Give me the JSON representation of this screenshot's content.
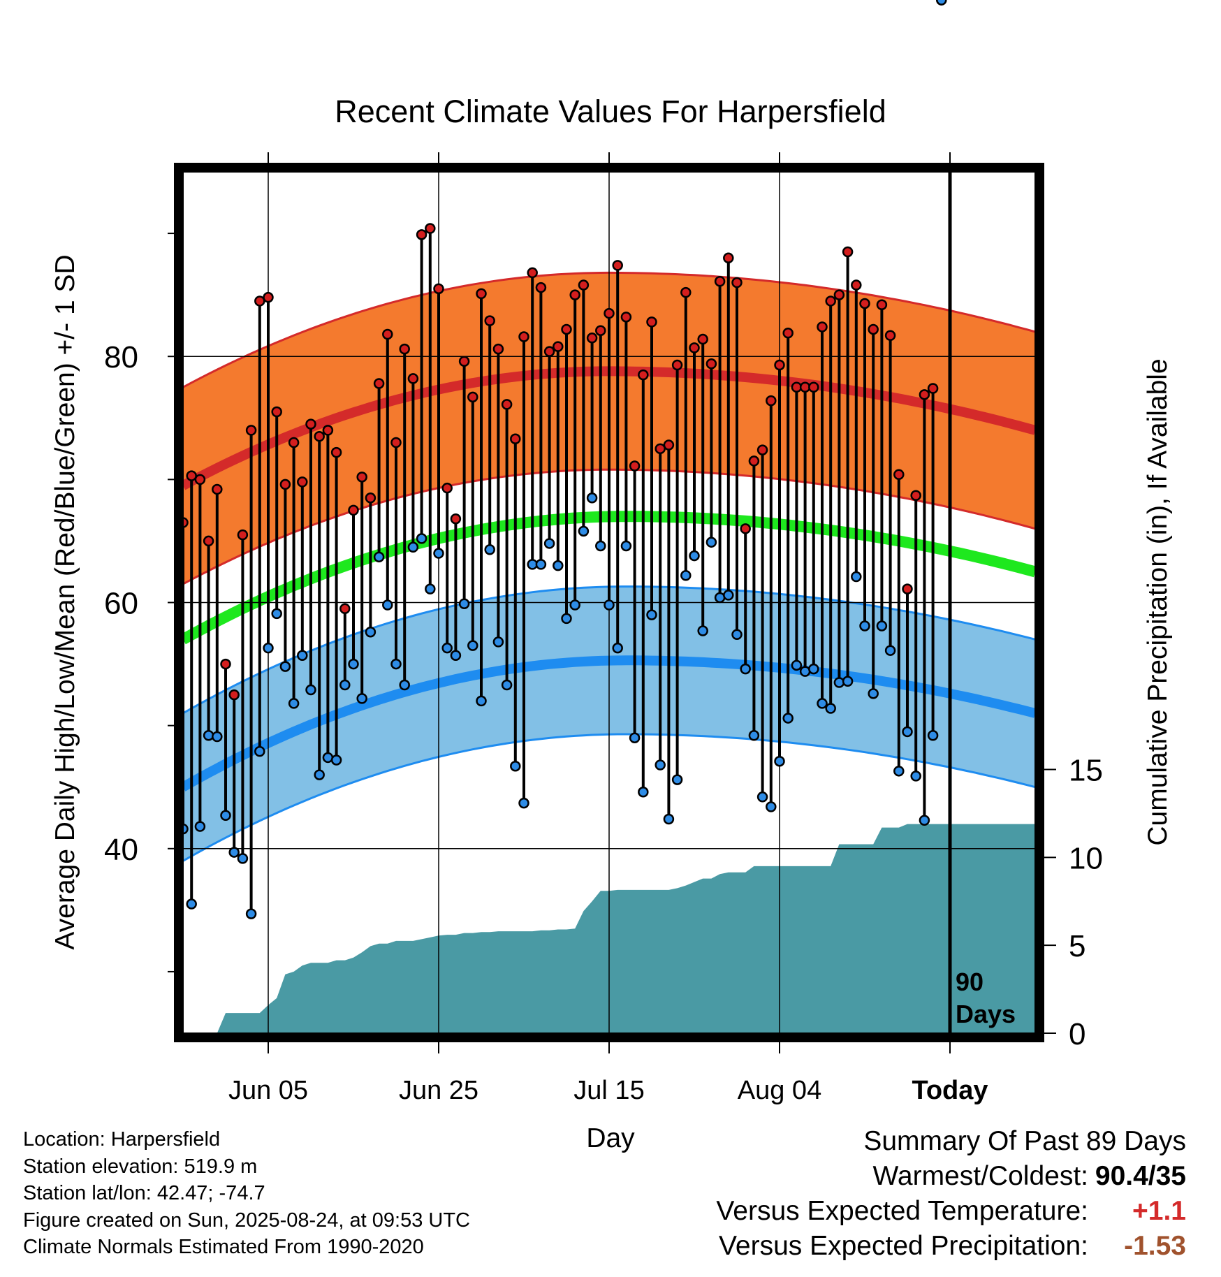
{
  "chart_data": {
    "type": "line",
    "title": "Recent Climate Values For Harpersfield",
    "xlabel": "Day",
    "ylabel": "Average Daily High/Low/Mean (Red/Blue/Green) +/- 1 SD",
    "y2label": "Cumulative Precipitation (in), If Available",
    "x_ticks": [
      "Jun 05",
      "Jun 25",
      "Jul 15",
      "Aug 04",
      "Today"
    ],
    "x_tick_days": [
      10,
      30,
      50,
      70,
      90
    ],
    "x_range_days": [
      0,
      100
    ],
    "y_ticks": [
      40,
      60,
      80
    ],
    "ylim": [
      25,
      95
    ],
    "y2_ticks": [
      0,
      5,
      10,
      15
    ],
    "y2lim": [
      0,
      49
    ],
    "today_marker": "90\nDays",
    "normal_high": {
      "day0": 69.5,
      "peak": 78.8,
      "peak_day": 50,
      "day100": 74
    },
    "normal_low": {
      "day0": 45.0,
      "peak": 55.3,
      "peak_day": 52,
      "day100": 51
    },
    "normal_mean_band": {
      "day0": 57.0,
      "peak": 67.0,
      "peak_day": 52,
      "day100": 62.5
    },
    "high_sd": 8.0,
    "low_sd": 6.0,
    "daily": {
      "days": [
        0,
        1,
        2,
        3,
        4,
        5,
        6,
        7,
        8,
        9,
        10,
        11,
        12,
        13,
        14,
        15,
        16,
        17,
        18,
        19,
        20,
        21,
        22,
        23,
        24,
        25,
        26,
        27,
        28,
        29,
        30,
        31,
        32,
        33,
        34,
        35,
        36,
        37,
        38,
        39,
        40,
        41,
        42,
        43,
        44,
        45,
        46,
        47,
        48,
        49,
        50,
        51,
        52,
        53,
        54,
        55,
        56,
        57,
        58,
        59,
        60,
        61,
        62,
        63,
        64,
        65,
        66,
        67,
        68,
        69,
        70,
        71,
        72,
        73,
        74,
        75,
        76,
        77,
        78,
        79,
        80,
        81,
        82,
        83,
        84,
        85,
        86,
        87,
        88,
        89
      ],
      "highs": [
        66.5,
        70.3,
        70.0,
        65.0,
        69.2,
        55.0,
        52.5,
        65.5,
        74.0,
        84.5,
        84.8,
        75.5,
        69.6,
        73.0,
        69.8,
        74.5,
        73.5,
        74.0,
        72.2,
        59.5,
        67.5,
        70.2,
        68.5,
        77.8,
        81.8,
        73.0,
        80.6,
        78.2,
        89.9,
        90.4,
        85.5,
        69.3,
        66.8,
        79.6,
        76.7,
        85.1,
        82.9,
        80.6,
        76.1,
        73.3,
        81.6,
        86.8,
        85.6,
        80.4,
        80.8,
        82.2,
        85.0,
        85.8,
        81.5,
        82.1,
        83.5,
        87.4,
        83.2,
        71.1,
        78.5,
        82.8,
        72.5,
        72.8,
        79.3,
        85.2,
        80.7,
        81.4,
        79.4,
        86.1,
        88.0,
        86.0,
        66.0,
        71.5,
        72.4,
        76.4,
        79.3,
        81.9,
        77.5,
        77.5,
        77.5,
        82.4,
        84.5,
        85.0,
        88.5,
        85.8,
        84.3,
        82.2,
        84.2,
        81.7,
        70.4,
        61.1,
        68.7,
        76.9,
        77.4
      ],
      "lows": [
        41.6,
        35.5,
        41.8,
        49.2,
        49.1,
        42.7,
        39.7,
        39.2,
        34.7,
        47.9,
        56.3,
        59.1,
        54.8,
        51.8,
        55.7,
        52.9,
        46.0,
        47.4,
        47.2,
        53.3,
        55.0,
        52.2,
        57.6,
        63.7,
        59.8,
        55.0,
        53.3,
        64.5,
        65.2,
        61.1,
        64.0,
        56.3,
        55.7,
        59.9,
        56.5,
        52.0,
        64.3,
        56.8,
        53.3,
        46.7,
        43.7,
        63.1,
        63.1,
        64.8,
        63.0,
        58.7,
        59.8,
        65.8,
        68.5,
        64.6,
        59.8,
        56.3,
        64.6,
        49.0,
        44.6,
        59.0,
        46.8,
        42.4,
        45.6,
        62.2,
        63.8,
        57.7,
        64.9,
        60.4,
        60.6,
        57.4,
        54.6,
        49.2,
        44.2,
        43.4,
        47.1,
        50.6,
        54.9,
        54.4,
        54.6,
        51.8,
        51.4,
        53.5,
        53.6,
        62.1,
        58.1,
        52.6,
        58.1,
        56.1,
        46.3,
        49.5,
        45.9,
        42.3,
        49.2
      ]
    },
    "precip_cumulative": {
      "days": [
        0,
        4,
        5,
        9,
        10,
        11,
        12,
        13,
        14,
        15,
        16,
        17,
        18,
        19,
        20,
        21,
        22,
        23,
        24,
        25,
        26,
        27,
        28,
        29,
        30,
        31,
        32,
        33,
        34,
        35,
        36,
        37,
        38,
        39,
        40,
        41,
        42,
        43,
        44,
        45,
        46,
        47,
        48,
        49,
        50,
        51,
        52,
        53,
        54,
        55,
        56,
        57,
        58,
        59,
        60,
        61,
        62,
        63,
        64,
        65,
        66,
        67,
        68,
        69,
        70,
        71,
        72,
        73,
        74,
        75,
        76,
        77,
        78,
        79,
        80,
        81,
        82,
        83,
        84,
        85,
        86,
        87,
        88,
        89,
        90,
        100
      ],
      "values": [
        0,
        0,
        1.15,
        1.15,
        1.6,
        2.0,
        3.35,
        3.5,
        3.85,
        4.0,
        4.0,
        4.0,
        4.15,
        4.15,
        4.3,
        4.6,
        4.95,
        5.1,
        5.1,
        5.25,
        5.25,
        5.25,
        5.35,
        5.45,
        5.55,
        5.6,
        5.6,
        5.7,
        5.7,
        5.75,
        5.75,
        5.8,
        5.8,
        5.8,
        5.8,
        5.8,
        5.85,
        5.85,
        5.9,
        5.9,
        5.95,
        6.95,
        7.5,
        8.1,
        8.1,
        8.15,
        8.15,
        8.15,
        8.15,
        8.15,
        8.15,
        8.15,
        8.25,
        8.4,
        8.6,
        8.8,
        8.8,
        9.05,
        9.15,
        9.15,
        9.15,
        9.5,
        9.5,
        9.5,
        9.5,
        9.5,
        9.5,
        9.5,
        9.5,
        9.5,
        9.5,
        10.75,
        10.75,
        10.75,
        10.75,
        10.75,
        11.7,
        11.7,
        11.7,
        11.9,
        11.9,
        11.9,
        11.9,
        11.9,
        11.9,
        11.9
      ]
    }
  },
  "colors": {
    "high_band": "#F47A2E",
    "high_line": "#D42A2A",
    "low_band": "#82C0E6",
    "low_line": "#1E8CF0",
    "mean_line": "#1EE81E",
    "precip": "#4A9AA4",
    "high_dot": "#D41E1E",
    "low_dot": "#2E8CE6",
    "warm_text": "#D42A2A",
    "precip_text": "#A0522D"
  },
  "footer": {
    "location": "Location: Harpersfield",
    "elevation": "Station elevation: 519.9 m",
    "latlon": "Station lat/lon: 42.47; -74.7",
    "created": "Figure created on Sun, 2025-08-24, at 09:53 UTC",
    "normals": "Climate Normals Estimated From 1990-2020"
  },
  "summary": {
    "title": "Summary Of Past 89 Days",
    "warmest_label": "Warmest/Coldest:",
    "warmest_value": "90.4/35",
    "temp_label": "Versus Expected Temperature:",
    "temp_value": "+1.1",
    "precip_label": "Versus Expected Precipitation:",
    "precip_value": "-1.53"
  }
}
